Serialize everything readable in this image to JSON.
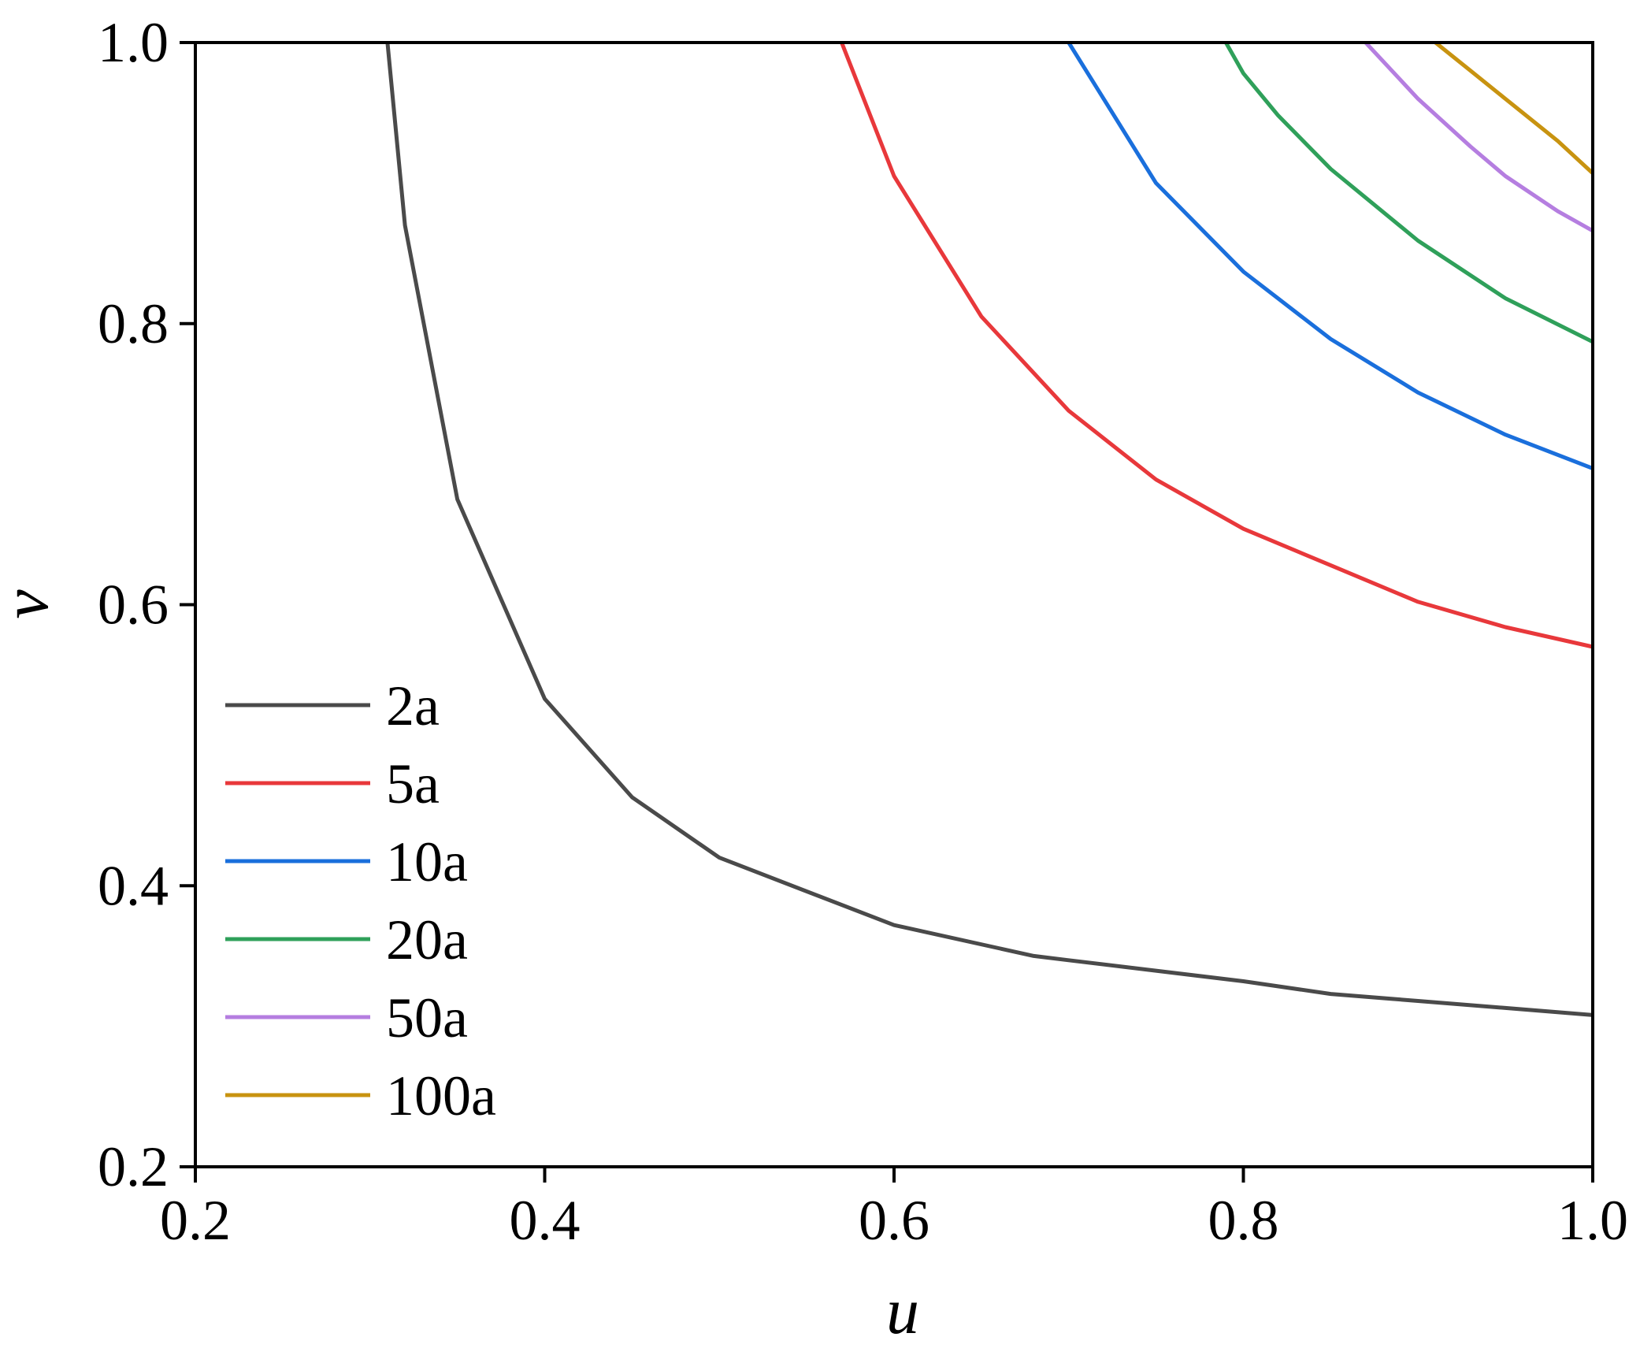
{
  "chart_data": {
    "type": "line",
    "title": "",
    "xlabel": "u",
    "ylabel": "v",
    "xlim": [
      0.2,
      1.0
    ],
    "ylim": [
      0.2,
      1.0
    ],
    "xticks": [
      "0.2",
      "0.4",
      "0.6",
      "0.8",
      "1.0"
    ],
    "yticks": [
      "0.2",
      "0.4",
      "0.6",
      "0.8",
      "1.0"
    ],
    "grid": false,
    "legend_position": "bottom-left",
    "series": [
      {
        "name": "2a",
        "color": "#4a4a4a",
        "points": [
          [
            0.31,
            1.0
          ],
          [
            0.32,
            0.87
          ],
          [
            0.35,
            0.675
          ],
          [
            0.4,
            0.533
          ],
          [
            0.45,
            0.463
          ],
          [
            0.5,
            0.42
          ],
          [
            0.6,
            0.372
          ],
          [
            0.68,
            0.35
          ],
          [
            0.7,
            0.347
          ],
          [
            0.8,
            0.332
          ],
          [
            0.85,
            0.323
          ],
          [
            0.9,
            0.318
          ],
          [
            0.95,
            0.313
          ],
          [
            1.0,
            0.308
          ]
        ]
      },
      {
        "name": "5a",
        "color": "#e8383b",
        "points": [
          [
            0.57,
            1.0
          ],
          [
            0.6,
            0.905
          ],
          [
            0.65,
            0.805
          ],
          [
            0.7,
            0.738
          ],
          [
            0.75,
            0.689
          ],
          [
            0.8,
            0.654
          ],
          [
            0.85,
            0.628
          ],
          [
            0.9,
            0.602
          ],
          [
            0.95,
            0.584
          ],
          [
            1.0,
            0.57
          ]
        ]
      },
      {
        "name": "10a",
        "color": "#1a6fdc",
        "points": [
          [
            0.7,
            1.0
          ],
          [
            0.75,
            0.9
          ],
          [
            0.8,
            0.837
          ],
          [
            0.85,
            0.789
          ],
          [
            0.9,
            0.751
          ],
          [
            0.95,
            0.721
          ],
          [
            1.0,
            0.697
          ]
        ]
      },
      {
        "name": "20a",
        "color": "#2fa05a",
        "points": [
          [
            0.79,
            1.0
          ],
          [
            0.8,
            0.978
          ],
          [
            0.82,
            0.948
          ],
          [
            0.85,
            0.91
          ],
          [
            0.9,
            0.859
          ],
          [
            0.95,
            0.818
          ],
          [
            1.0,
            0.787
          ]
        ]
      },
      {
        "name": "50a",
        "color": "#b57ee0",
        "points": [
          [
            0.87,
            1.0
          ],
          [
            0.9,
            0.96
          ],
          [
            0.93,
            0.926
          ],
          [
            0.95,
            0.905
          ],
          [
            0.98,
            0.88
          ],
          [
            1.0,
            0.866
          ]
        ]
      },
      {
        "name": "100a",
        "color": "#c89310",
        "points": [
          [
            0.91,
            1.0
          ],
          [
            0.93,
            0.98
          ],
          [
            0.95,
            0.96
          ],
          [
            0.98,
            0.93
          ],
          [
            1.0,
            0.907
          ]
        ]
      }
    ]
  }
}
